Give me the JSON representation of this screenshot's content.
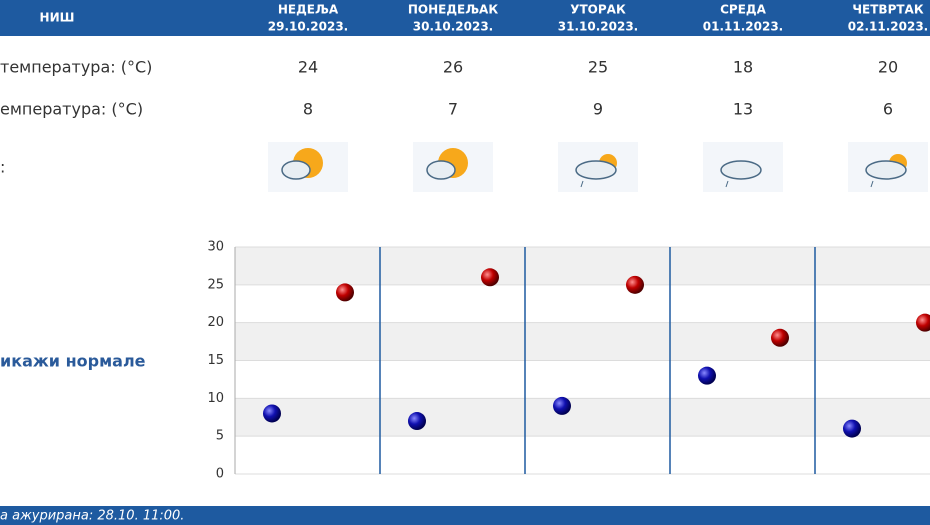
{
  "header": {
    "city": "НИШ",
    "days": [
      {
        "name": "НЕДЕЉА",
        "date": "29.10.2023."
      },
      {
        "name": "ПОНЕДЕЉАК",
        "date": "30.10.2023."
      },
      {
        "name": "УТОРАК",
        "date": "31.10.2023."
      },
      {
        "name": "СРЕДА",
        "date": "01.11.2023."
      },
      {
        "name": "ЧЕТВРТАК",
        "date": "02.11.2023."
      }
    ]
  },
  "rows": {
    "max_label": "температура: (°C)",
    "min_label": "емпература: (°C)",
    "icon_label": ":"
  },
  "normals_link": "икажи нормале",
  "footer": "а ажурирана:  28.10. 11:00.",
  "chart_data": {
    "type": "scatter",
    "series": [
      {
        "color": "#1010b0",
        "values": [
          8,
          7,
          9,
          13,
          6
        ]
      },
      {
        "color": "#c00000",
        "values": [
          24,
          26,
          25,
          18,
          20
        ]
      }
    ],
    "ylim": [
      0,
      30
    ],
    "yticks": [
      0,
      5,
      10,
      15,
      20,
      25,
      30
    ],
    "grid": true
  }
}
